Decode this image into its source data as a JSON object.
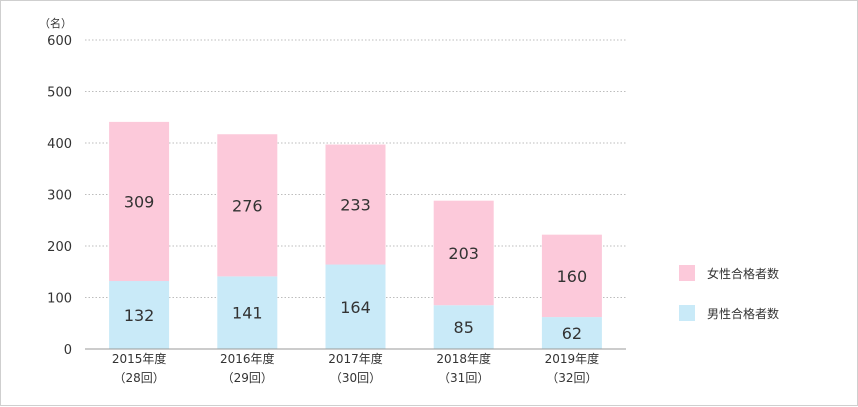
{
  "chart_data": {
    "type": "bar",
    "stacked": true,
    "unit_label": "（名）",
    "ylim": [
      0,
      600
    ],
    "y_ticks": [
      0,
      100,
      200,
      300,
      400,
      500,
      600
    ],
    "grid": true,
    "legend_position": "right",
    "categories": [
      [
        "2015年度",
        "（28回）"
      ],
      [
        "2016年度",
        "（29回）"
      ],
      [
        "2017年度",
        "（30回）"
      ],
      [
        "2018年度",
        "（31回）"
      ],
      [
        "2019年度",
        "（32回）"
      ]
    ],
    "series": [
      {
        "name": "男性合格者数",
        "color": "#c9eaf8",
        "values": [
          132,
          141,
          164,
          85,
          62
        ]
      },
      {
        "name": "女性合格者数",
        "color": "#fcc9da",
        "values": [
          309,
          276,
          233,
          203,
          160
        ]
      }
    ],
    "legend_order": [
      1,
      0
    ]
  }
}
